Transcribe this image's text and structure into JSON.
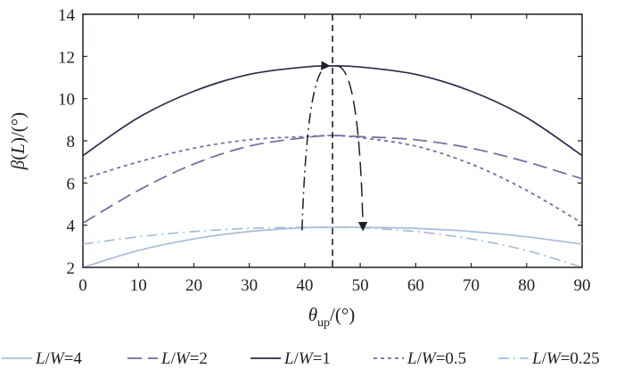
{
  "chart_data": {
    "type": "line",
    "ylabel_parts": [
      "β",
      "(",
      "L",
      ")/(°)"
    ],
    "xlabel_parts": [
      "θ",
      "up",
      "/(°)"
    ],
    "xlim": [
      0,
      90
    ],
    "ylim": [
      2,
      14
    ],
    "xticks": [
      0,
      10,
      20,
      30,
      40,
      50,
      60,
      70,
      80,
      90
    ],
    "yticks": [
      2,
      4,
      6,
      8,
      10,
      12,
      14
    ],
    "grid": false,
    "legend_position": "bottom",
    "series": [
      {
        "name": "L/W=4",
        "label": {
          "var1": "L",
          "sep": "/",
          "var2": "W",
          "value": "=4"
        },
        "color": "#a9bcdc",
        "dash": "solid",
        "x": [
          0,
          10,
          20,
          30,
          40,
          45,
          50,
          60,
          70,
          80,
          90
        ],
        "y": [
          2.0,
          2.8,
          3.35,
          3.7,
          3.88,
          3.9,
          3.9,
          3.85,
          3.7,
          3.45,
          3.1
        ]
      },
      {
        "name": "L/W=2",
        "label": {
          "var1": "L",
          "sep": "/",
          "var2": "W",
          "value": "=2"
        },
        "color": "#6a6ba3",
        "dash": "longdash",
        "x": [
          0,
          10,
          20,
          30,
          40,
          45,
          50,
          60,
          70,
          80,
          90
        ],
        "y": [
          4.1,
          5.65,
          6.9,
          7.75,
          8.15,
          8.25,
          8.2,
          8.05,
          7.65,
          7.0,
          6.2
        ]
      },
      {
        "name": "L/W=1",
        "label": {
          "var1": "L",
          "sep": "/",
          "var2": "W",
          "value": "=1"
        },
        "color": "#2b2a4c",
        "dash": "solid",
        "x": [
          0,
          10,
          20,
          30,
          40,
          45,
          50,
          60,
          70,
          80,
          90
        ],
        "y": [
          7.3,
          9.1,
          10.35,
          11.15,
          11.5,
          11.55,
          11.5,
          11.15,
          10.35,
          9.1,
          7.3
        ]
      },
      {
        "name": "L/W=0.5",
        "label": {
          "var1": "L",
          "sep": "/",
          "var2": "W",
          "value": "=0.5"
        },
        "color": "#6a6ba3",
        "dash": "shortdash",
        "x": [
          0,
          10,
          20,
          30,
          40,
          45,
          50,
          60,
          70,
          80,
          90
        ],
        "y": [
          6.2,
          7.0,
          7.65,
          8.05,
          8.2,
          8.25,
          8.15,
          7.75,
          6.9,
          5.65,
          4.1
        ]
      },
      {
        "name": "L/W=0.25",
        "label": {
          "var1": "L",
          "sep": "/",
          "var2": "W",
          "value": "=0.25"
        },
        "color": "#a9bcdc",
        "dash": "dashdot",
        "x": [
          0,
          10,
          20,
          30,
          40,
          45,
          50,
          60,
          70,
          80,
          90
        ],
        "y": [
          3.1,
          3.45,
          3.7,
          3.85,
          3.9,
          3.9,
          3.88,
          3.7,
          3.35,
          2.8,
          2.0
        ]
      }
    ],
    "reference_line": {
      "x": 45,
      "style": "dashed",
      "color": "#231f20"
    },
    "annotations": [
      {
        "kind": "arrow",
        "style": "dashdot",
        "from": [
          39.5,
          3.75
        ],
        "control": [
          40.5,
          11.6
        ],
        "to": [
          44.3,
          11.55
        ]
      },
      {
        "kind": "arrow",
        "style": "longdash",
        "from": [
          45.7,
          11.55
        ],
        "control": [
          49.8,
          11.6
        ],
        "to": [
          50.5,
          3.8
        ]
      }
    ]
  }
}
